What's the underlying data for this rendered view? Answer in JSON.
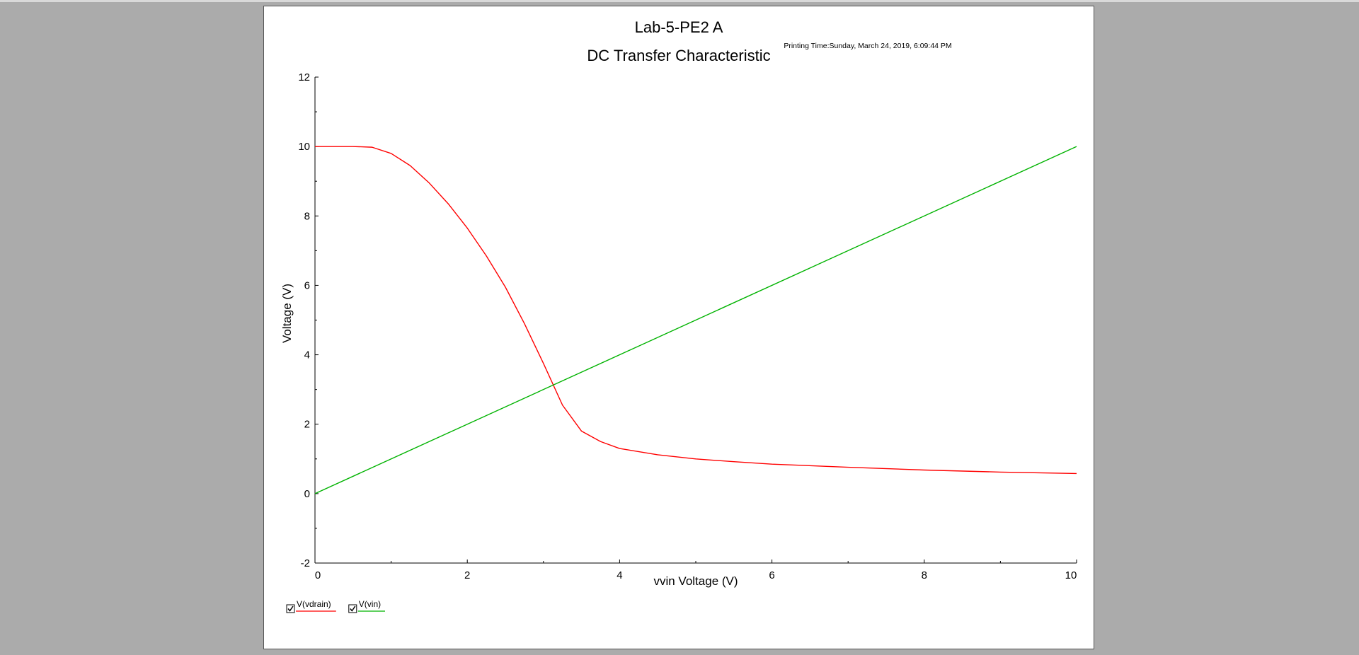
{
  "window": {
    "background": "#ababab"
  },
  "chart_data": {
    "type": "line",
    "title": "Lab-5-PE2 A",
    "subtitle": "DC Transfer Characteristic",
    "printing_time": "Printing Time:Sunday, March 24, 2019, 6:09:44 PM",
    "xlabel": "vvin Voltage (V)",
    "ylabel": "Voltage (V)",
    "xlim": [
      0,
      10
    ],
    "ylim": [
      -2,
      12
    ],
    "xticks": [
      0,
      2,
      4,
      6,
      8,
      10
    ],
    "yticks": [
      -2,
      0,
      2,
      4,
      6,
      8,
      10,
      12
    ],
    "grid": false,
    "legend_position": "bottom-left",
    "series": [
      {
        "name": "V(vdrain)",
        "color": "#ff0000",
        "checked": true,
        "x": [
          0,
          0.5,
          0.75,
          1.0,
          1.25,
          1.5,
          1.75,
          2.0,
          2.25,
          2.5,
          2.75,
          3.0,
          3.25,
          3.5,
          3.75,
          4.0,
          4.5,
          5.0,
          5.5,
          6.0,
          7.0,
          8.0,
          9.0,
          10.0
        ],
        "y": [
          10.0,
          10.0,
          9.98,
          9.8,
          9.45,
          8.95,
          8.35,
          7.65,
          6.85,
          5.95,
          4.9,
          3.75,
          2.55,
          1.8,
          1.5,
          1.3,
          1.12,
          1.0,
          0.92,
          0.85,
          0.76,
          0.68,
          0.62,
          0.58
        ]
      },
      {
        "name": "V(vin)",
        "color": "#00b300",
        "checked": true,
        "x": [
          0,
          10
        ],
        "y": [
          0,
          10
        ]
      }
    ]
  }
}
